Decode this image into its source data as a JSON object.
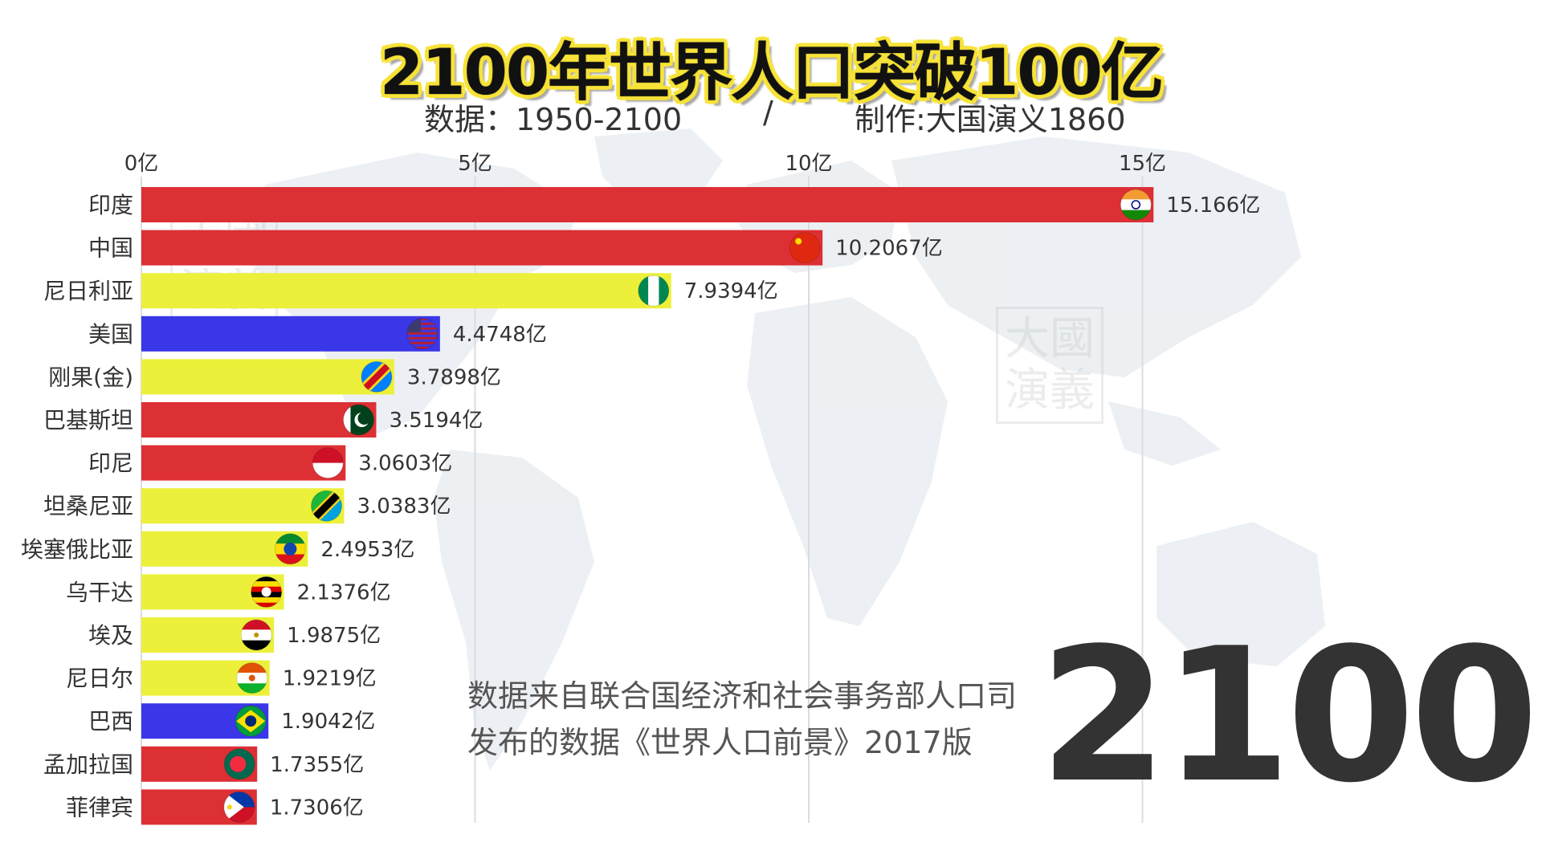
{
  "title": "2100年世界人口突破100亿",
  "subtitle": {
    "data_range": "数据：1950-2100",
    "separator": "/",
    "author": "制作:大国演义1860"
  },
  "watermark": {
    "line1": "大國",
    "line2": "演義"
  },
  "note": {
    "line1": "数据来自联合国经济和社会事务部人口司",
    "line2": "发布的数据《世界人口前景》2017版"
  },
  "year": "2100",
  "colors": {
    "red": "#dc3035",
    "yellow": "#ecf03a",
    "blue": "#3a37e8",
    "grid": "#dcdcdc"
  },
  "chart_data": {
    "type": "bar",
    "orientation": "horizontal",
    "unit": "亿",
    "xlim": [
      0,
      15.2
    ],
    "ticks": [
      {
        "value": 0,
        "label": "0亿"
      },
      {
        "value": 5,
        "label": "5亿"
      },
      {
        "value": 10,
        "label": "10亿"
      },
      {
        "value": 15,
        "label": "15亿"
      }
    ],
    "grid": true,
    "bars": [
      {
        "category": "印度",
        "value": 15.166,
        "label": "15.166亿",
        "color": "#dc3035",
        "flag": "india-flag-icon"
      },
      {
        "category": "中国",
        "value": 10.2067,
        "label": "10.2067亿",
        "color": "#dc3035",
        "flag": "china-flag-icon"
      },
      {
        "category": "尼日利亚",
        "value": 7.9394,
        "label": "7.9394亿",
        "color": "#ecf03a",
        "flag": "nigeria-flag-icon"
      },
      {
        "category": "美国",
        "value": 4.4748,
        "label": "4.4748亿",
        "color": "#3a37e8",
        "flag": "usa-flag-icon"
      },
      {
        "category": "刚果(金)",
        "value": 3.7898,
        "label": "3.7898亿",
        "color": "#ecf03a",
        "flag": "dr-congo-flag-icon"
      },
      {
        "category": "巴基斯坦",
        "value": 3.5194,
        "label": "3.5194亿",
        "color": "#dc3035",
        "flag": "pakistan-flag-icon"
      },
      {
        "category": "印尼",
        "value": 3.0603,
        "label": "3.0603亿",
        "color": "#dc3035",
        "flag": "indonesia-flag-icon"
      },
      {
        "category": "坦桑尼亚",
        "value": 3.0383,
        "label": "3.0383亿",
        "color": "#ecf03a",
        "flag": "tanzania-flag-icon"
      },
      {
        "category": "埃塞俄比亚",
        "value": 2.4953,
        "label": "2.4953亿",
        "color": "#ecf03a",
        "flag": "ethiopia-flag-icon"
      },
      {
        "category": "乌干达",
        "value": 2.1376,
        "label": "2.1376亿",
        "color": "#ecf03a",
        "flag": "uganda-flag-icon"
      },
      {
        "category": "埃及",
        "value": 1.9875,
        "label": "1.9875亿",
        "color": "#ecf03a",
        "flag": "egypt-flag-icon"
      },
      {
        "category": "尼日尔",
        "value": 1.9219,
        "label": "1.9219亿",
        "color": "#ecf03a",
        "flag": "niger-flag-icon"
      },
      {
        "category": "巴西",
        "value": 1.9042,
        "label": "1.9042亿",
        "color": "#3a37e8",
        "flag": "brazil-flag-icon"
      },
      {
        "category": "孟加拉国",
        "value": 1.7355,
        "label": "1.7355亿",
        "color": "#dc3035",
        "flag": "bangladesh-flag-icon"
      },
      {
        "category": "菲律宾",
        "value": 1.7306,
        "label": "1.7306亿",
        "color": "#dc3035",
        "flag": "philippines-flag-icon"
      }
    ]
  }
}
